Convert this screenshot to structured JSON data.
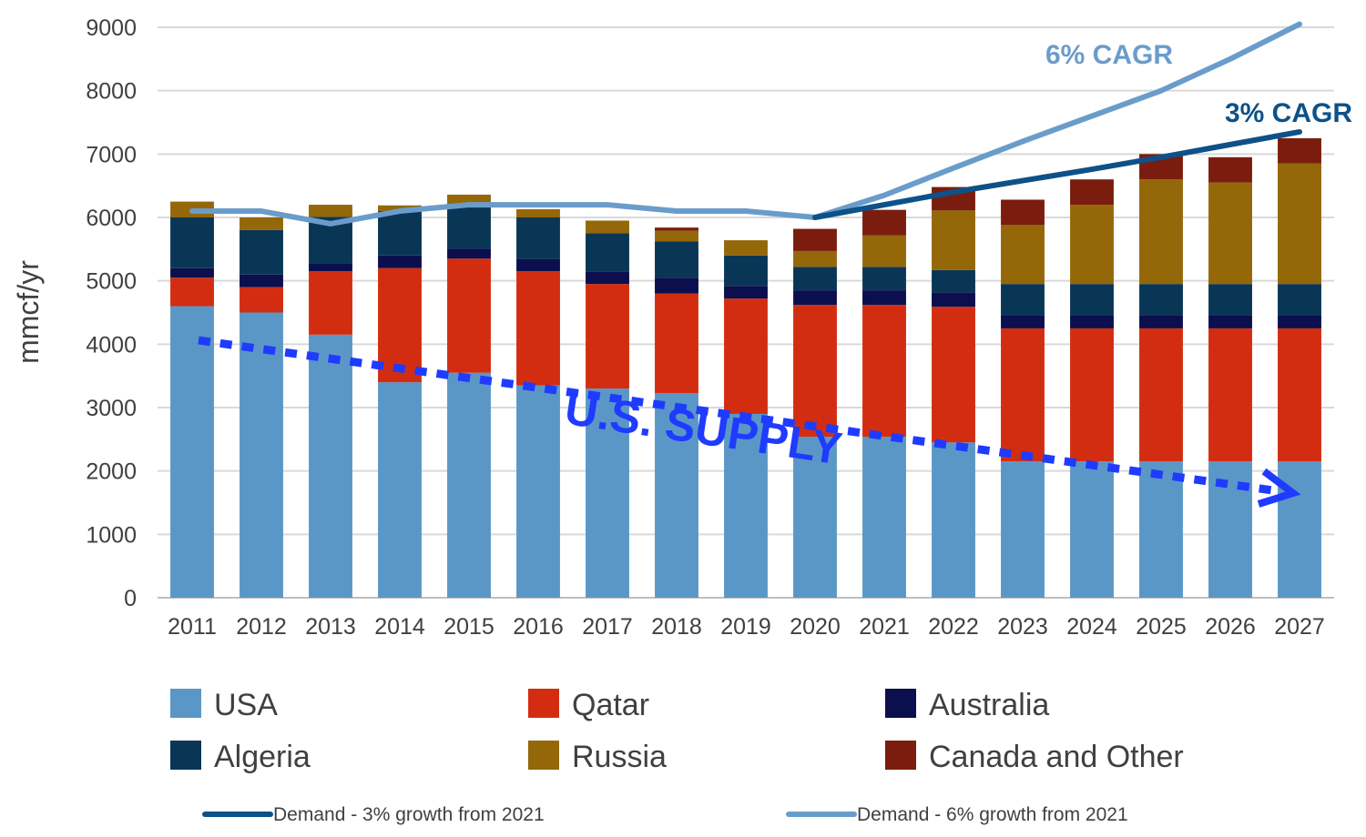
{
  "chart_data": {
    "type": "bar",
    "stacked": true,
    "ylabel": "mmcf/yr",
    "ylim": [
      0,
      9000
    ],
    "yticks": [
      0,
      1000,
      2000,
      3000,
      4000,
      5000,
      6000,
      7000,
      8000,
      9000
    ],
    "grid": true,
    "categories": [
      "2011",
      "2012",
      "2013",
      "2014",
      "2015",
      "2016",
      "2017",
      "2018",
      "2019",
      "2020",
      "2021",
      "2022",
      "2023",
      "2024",
      "2025",
      "2026",
      "2027"
    ],
    "series": [
      {
        "name": "USA",
        "color": "#5b97c6",
        "values": [
          4600,
          4500,
          4150,
          3400,
          3550,
          3350,
          3300,
          3230,
          2900,
          2540,
          2540,
          2450,
          2150,
          2150,
          2150,
          2150,
          2150
        ]
      },
      {
        "name": "Qatar",
        "color": "#d32d11",
        "values": [
          450,
          400,
          1000,
          1800,
          1800,
          1800,
          1650,
          1570,
          1820,
          2080,
          2080,
          2140,
          2100,
          2100,
          2100,
          2100,
          2100
        ]
      },
      {
        "name": "Australia",
        "color": "#0b0f4d",
        "values": [
          150,
          200,
          130,
          200,
          160,
          200,
          200,
          250,
          200,
          230,
          230,
          230,
          200,
          200,
          200,
          200,
          200
        ]
      },
      {
        "name": "Algeria",
        "color": "#0a3655",
        "values": [
          800,
          700,
          730,
          700,
          700,
          650,
          600,
          570,
          480,
          370,
          370,
          350,
          500,
          500,
          500,
          500,
          500
        ]
      },
      {
        "name": "Russia",
        "color": "#946709",
        "values": [
          250,
          200,
          190,
          90,
          150,
          130,
          200,
          170,
          240,
          250,
          500,
          940,
          930,
          1250,
          1650,
          1600,
          1900
        ]
      },
      {
        "name": "Canada and Other",
        "color": "#7a1d0e",
        "values": [
          0,
          0,
          0,
          0,
          0,
          0,
          0,
          50,
          0,
          350,
          400,
          370,
          400,
          400,
          400,
          400,
          400
        ]
      }
    ],
    "lines": [
      {
        "name": "Demand - 3% growth from 2021",
        "color": "#0d5188",
        "x": [
          "2020",
          "2021",
          "2022",
          "2023",
          "2024",
          "2025",
          "2026",
          "2027"
        ],
        "values": [
          6000,
          6200,
          6400,
          6580,
          6760,
          6950,
          7150,
          7350
        ]
      },
      {
        "name": "Demand - 6% growth from 2021",
        "color": "#6a9ccb",
        "x": [
          "2011",
          "2012",
          "2013",
          "2014",
          "2015",
          "2016",
          "2017",
          "2018",
          "2019",
          "2020",
          "2021",
          "2022",
          "2023",
          "2024",
          "2025",
          "2026",
          "2027"
        ],
        "values": [
          6100,
          6100,
          5900,
          6100,
          6200,
          6200,
          6200,
          6100,
          6100,
          6000,
          6350,
          6780,
          7200,
          7600,
          8000,
          8500,
          9050
        ]
      }
    ],
    "annotations": {
      "cagr6": "6% CAGR",
      "cagr3": "3% CAGR",
      "supply": "U.S. SUPPLY"
    },
    "legend_position": "bottom"
  }
}
